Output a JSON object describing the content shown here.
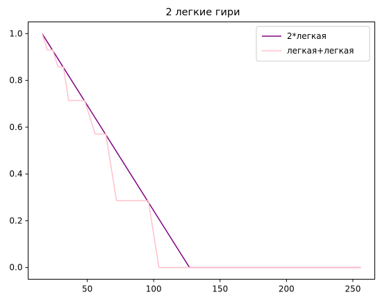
{
  "chart_data": {
    "type": "line",
    "title": "2 легкие гири",
    "xlabel": "",
    "ylabel": "",
    "xlim": [
      5.5,
      266.5
    ],
    "ylim": [
      -0.05,
      1.05
    ],
    "x_ticks": [
      50,
      100,
      150,
      200,
      250
    ],
    "y_ticks": [
      0.0,
      0.2,
      0.4,
      0.6,
      0.8,
      1.0
    ],
    "x_tick_labels": [
      "50",
      "100",
      "150",
      "200",
      "250"
    ],
    "y_tick_labels": [
      "0.0",
      "0.2",
      "0.4",
      "0.6",
      "0.8",
      "1.0"
    ],
    "grid": false,
    "legend_position": "upper right",
    "series": [
      {
        "name": "2*легкая",
        "color": "#800080",
        "points": [
          [
            16,
            1.0
          ],
          [
            127,
            0.0
          ],
          [
            256,
            0.0
          ]
        ]
      },
      {
        "name": "легкая+легкая",
        "color": "#ffc0cb",
        "points": [
          [
            16,
            1.0
          ],
          [
            20,
            0.93
          ],
          [
            24,
            0.93
          ],
          [
            28,
            0.857
          ],
          [
            32,
            0.857
          ],
          [
            36,
            0.714
          ],
          [
            48,
            0.714
          ],
          [
            56,
            0.571
          ],
          [
            64,
            0.571
          ],
          [
            72,
            0.286
          ],
          [
            96,
            0.286
          ],
          [
            104,
            0.0
          ],
          [
            256,
            0.0
          ]
        ]
      }
    ]
  }
}
